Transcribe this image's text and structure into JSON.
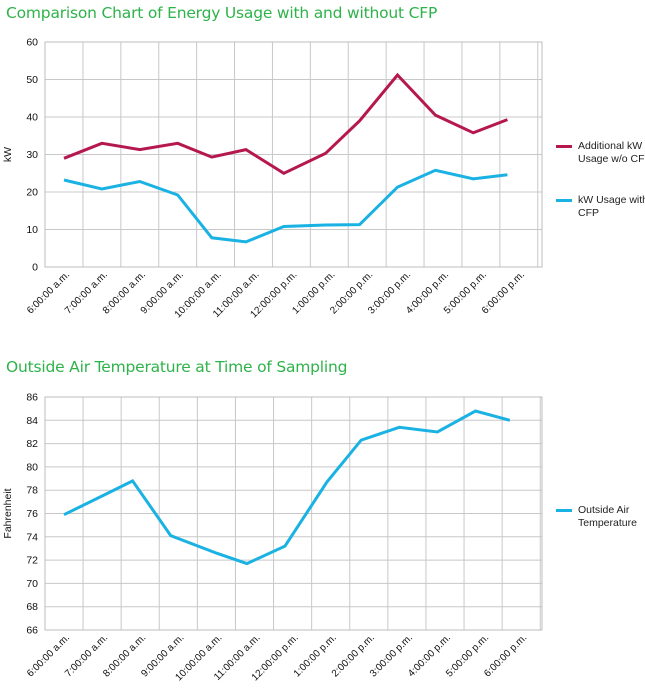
{
  "chart_data": [
    {
      "type": "line",
      "title": "Comparison Chart of Energy Usage with and without CFP",
      "xlabel": "",
      "ylabel": "kW",
      "ylim": [
        0,
        60
      ],
      "yticks": [
        0,
        10,
        20,
        30,
        40,
        50,
        60
      ],
      "grid": true,
      "legend": "right",
      "categories": [
        "6:00:00 a.m.",
        "7:00:00 a.m.",
        "8:00:00 a.m.",
        "9:00:00 a.m.",
        "10:00:00 a.m.",
        "11:00:00 a.m.",
        "12:00:00 p.m.",
        "1:00:00 p.m.",
        "2:00:00 p.m.",
        "3:00:00 p.m.",
        "4:00:00 p.m.",
        "5:00:00 p.m.",
        "6:00:00 p.m."
      ],
      "series": [
        {
          "name": "Additional kW Usage w/o CFP",
          "color": "#b5184f",
          "points": [
            [
              0.0,
              29.0
            ],
            [
              1.0,
              33.0
            ],
            [
              2.0,
              31.3
            ],
            [
              3.0,
              33.0
            ],
            [
              3.9,
              29.3
            ],
            [
              4.8,
              31.3
            ],
            [
              5.8,
              25.0
            ],
            [
              6.9,
              30.3
            ],
            [
              7.8,
              39.0
            ],
            [
              8.8,
              51.2
            ],
            [
              9.8,
              40.5
            ],
            [
              10.8,
              35.8
            ],
            [
              11.7,
              39.3
            ]
          ]
        },
        {
          "name": "kW Usage with CFP",
          "color": "#1ab2e3",
          "points": [
            [
              0.0,
              23.2
            ],
            [
              1.0,
              20.8
            ],
            [
              2.0,
              22.8
            ],
            [
              3.0,
              19.2
            ],
            [
              3.9,
              7.8
            ],
            [
              4.8,
              6.7
            ],
            [
              5.8,
              10.8
            ],
            [
              6.9,
              11.2
            ],
            [
              7.8,
              11.3
            ],
            [
              8.8,
              21.3
            ],
            [
              9.8,
              25.8
            ],
            [
              10.8,
              23.5
            ],
            [
              11.7,
              24.6
            ]
          ]
        }
      ]
    },
    {
      "type": "line",
      "title": "Outside Air Temperature at Time of Sampling",
      "xlabel": "",
      "ylabel": "Fahrenheit",
      "ylim": [
        66,
        86
      ],
      "yticks": [
        66,
        68,
        70,
        72,
        74,
        76,
        78,
        80,
        82,
        84,
        86
      ],
      "grid": true,
      "legend": "right",
      "categories": [
        "6:00:00 a.m.",
        "7:00:00 a.m.",
        "8:00:00 a.m.",
        "9:00:00 a.m.",
        "10:00:00 a.m.",
        "11:00:00 a.m.",
        "12:00:00 p.m.",
        "1:00:00 p.m.",
        "2:00:00 p.m.",
        "3:00:00 p.m.",
        "4:00:00 p.m.",
        "5:00:00 p.m.",
        "6:00:00 p.m."
      ],
      "series": [
        {
          "name": "Outside Air Temperature",
          "color": "#1ab2e3",
          "points": [
            [
              0.0,
              75.9
            ],
            [
              1.0,
              77.5
            ],
            [
              1.8,
              78.8
            ],
            [
              2.8,
              74.1
            ],
            [
              4.0,
              72.6
            ],
            [
              4.8,
              71.7
            ],
            [
              5.8,
              73.2
            ],
            [
              6.9,
              78.7
            ],
            [
              7.8,
              82.3
            ],
            [
              8.8,
              83.4
            ],
            [
              9.8,
              83.0
            ],
            [
              10.8,
              84.8
            ],
            [
              11.7,
              84.0
            ]
          ]
        }
      ]
    }
  ]
}
